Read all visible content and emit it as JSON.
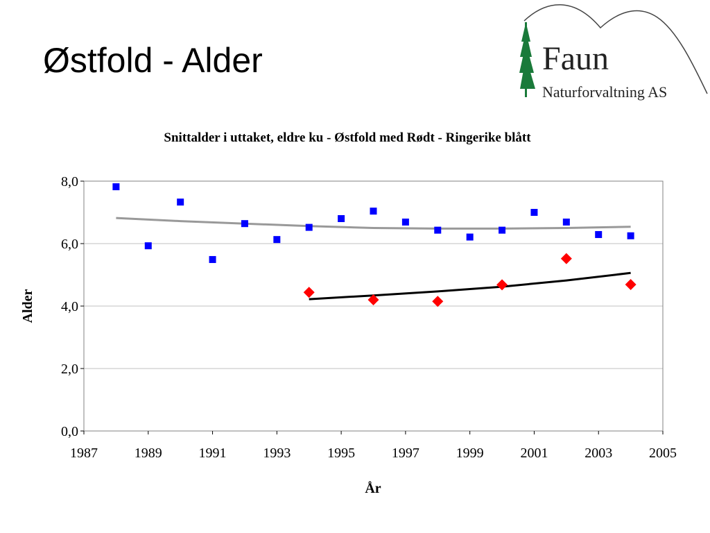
{
  "slide": {
    "title": "Østfold - Alder"
  },
  "logo": {
    "word": "Faun",
    "subtitle": "Naturforvaltning AS"
  },
  "colors": {
    "ostfold": "#ff0000",
    "ringerike": "#0000ff",
    "trend_ringerike": "#999999",
    "trend_ostfold": "#000000",
    "grid": "#c0c0c0",
    "logo_green": "#1a7a3a"
  },
  "chart_data": {
    "type": "scatter",
    "title": "Snittalder i uttaket, eldre ku - Østfold med Rødt - Ringerike blått",
    "xlabel": "År",
    "ylabel": "Alder",
    "xlim": [
      1987,
      2005
    ],
    "ylim": [
      0,
      8
    ],
    "x_ticks": [
      "1987",
      "1989",
      "1991",
      "1993",
      "1995",
      "1997",
      "1999",
      "2001",
      "2003",
      "2005"
    ],
    "y_ticks": [
      "0,0",
      "2,0",
      "4,0",
      "6,0",
      "8,0"
    ],
    "grid": "horizontal",
    "legend": "none",
    "series": [
      {
        "marker": "square",
        "color": "#0000ff",
        "x": [
          1988,
          1989,
          1990,
          1991,
          1992,
          1993,
          1994,
          1995,
          1996,
          1997,
          1998,
          1999,
          2000,
          2001,
          2002,
          2003,
          2004
        ],
        "y": [
          7.82,
          5.93,
          7.33,
          5.49,
          6.64,
          6.13,
          6.52,
          6.8,
          7.04,
          6.69,
          6.43,
          6.21,
          6.43,
          7.0,
          6.69,
          6.29,
          6.25
        ]
      },
      {
        "marker": "diamond",
        "color": "#ff0000",
        "x": [
          1994,
          1996,
          1998,
          2000,
          2002,
          2004
        ],
        "y": [
          4.44,
          4.2,
          4.15,
          4.68,
          5.52,
          4.69
        ]
      }
    ],
    "trendlines": [
      {
        "color": "#999999",
        "x": [
          1988,
          1990,
          1992,
          1994,
          1996,
          1998,
          2000,
          2002,
          2004
        ],
        "y": [
          6.82,
          6.72,
          6.64,
          6.56,
          6.5,
          6.48,
          6.48,
          6.5,
          6.54
        ]
      },
      {
        "color": "#000000",
        "x": [
          1994,
          1996,
          1998,
          2000,
          2002,
          2004
        ],
        "y": [
          4.22,
          4.34,
          4.47,
          4.62,
          4.82,
          5.06
        ]
      }
    ]
  }
}
